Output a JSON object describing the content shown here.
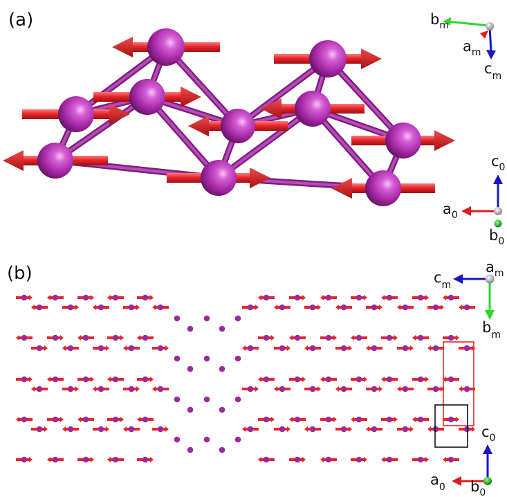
{
  "panels": {
    "a": {
      "label": "(a)"
    },
    "b": {
      "label": "(b)"
    }
  },
  "axes": {
    "a_magnetic": {
      "b": "b",
      "b_sub": "m",
      "a": "a",
      "a_sub": "m",
      "c": "c",
      "c_sub": "m"
    },
    "a_crystal": {
      "c": "c",
      "c_sub": "0",
      "a": "a",
      "a_sub": "0",
      "b": "b",
      "b_sub": "0"
    },
    "b_magnetic": {
      "a": "a",
      "a_sub": "m",
      "c": "c",
      "c_sub": "m",
      "b": "b",
      "b_sub": "m"
    },
    "b_crystal": {
      "c": "c",
      "c_sub": "0",
      "a": "a",
      "a_sub": "0",
      "b": "b",
      "b_sub": "0"
    }
  },
  "colors": {
    "atom": "#a82ca8",
    "atom_highlight": "#f3b6f3",
    "bond": "#9a2f9a",
    "spin_arrow": "#e8262c",
    "axis_red": "#e0191f",
    "axis_green": "#2bd62b",
    "axis_blue": "#1616c8",
    "magnetic_cell": "#e8262c",
    "crystal_cell": "#111111"
  },
  "spin_direction_rule": "spins alternate: arrows point right (+) or left (-)"
}
